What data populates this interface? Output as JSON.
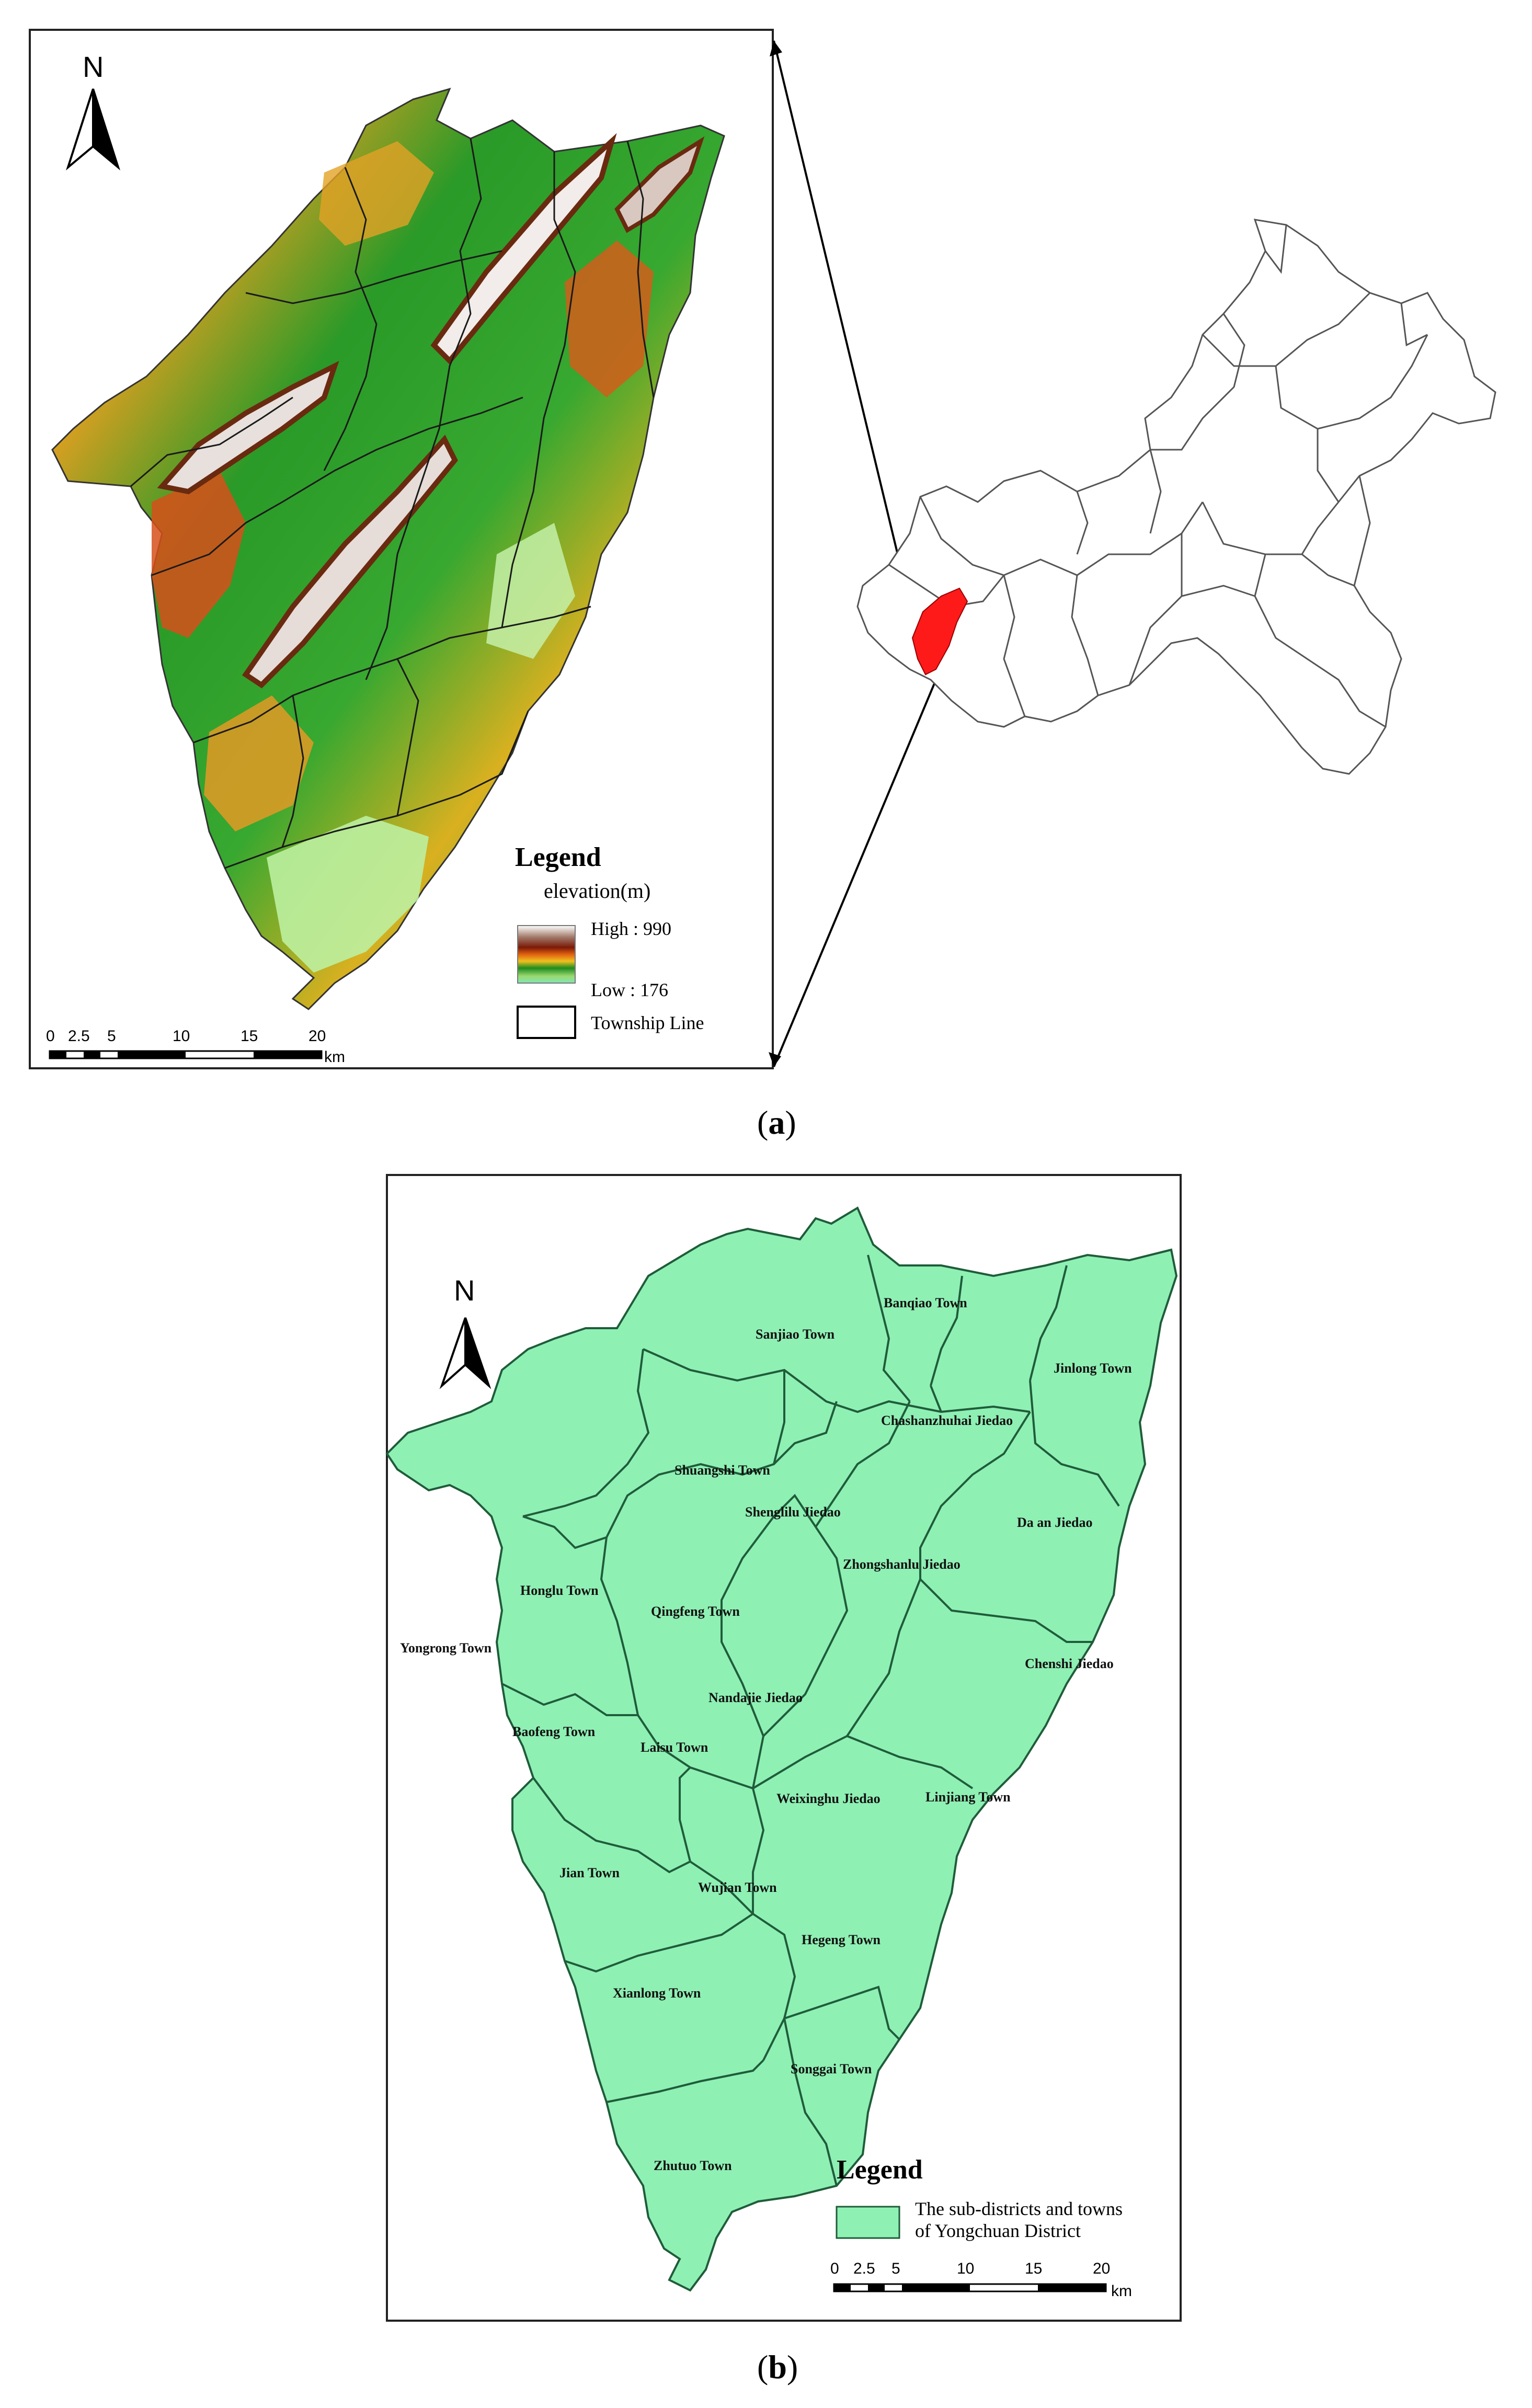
{
  "panel_a": {
    "caption_letter": "a",
    "north_label": "N",
    "legend": {
      "title": "Legend",
      "subtitle": "elevation(m)",
      "high_label": "High : 990",
      "low_label": "Low : 176",
      "boundary_label": "Township Line"
    },
    "scale": {
      "ticks": [
        "0",
        "2.5",
        "5",
        "10",
        "15",
        "20"
      ],
      "unit": "km"
    },
    "colors": {
      "highlight": "#ff1a1a",
      "low": "#7ee8b5",
      "high": "#ffffff"
    }
  },
  "panel_b": {
    "caption_letter": "b",
    "north_label": "N",
    "legend": {
      "title": "Legend",
      "item_line1": "The sub-districts and towns",
      "item_line2": "of Yongchuan District"
    },
    "scale": {
      "ticks": [
        "0",
        "2.5",
        "5",
        "10",
        "15",
        "20"
      ],
      "unit": "km"
    },
    "colors": {
      "fill": "#8ff0b4",
      "stroke": "#1f5c3a"
    },
    "towns": [
      "Banqiao Town",
      "Sanjiao Town",
      "Jinlong Town",
      "Chashanzhuhai Jiedao",
      "Shuangshi Town",
      "Shenglilu Jiedao",
      "Da an Jiedao",
      "Zhongshanlu Jiedao",
      "Honglu Town",
      "Qingfeng Town",
      "Yongrong Town",
      "Chenshi Jiedao",
      "Nandajie Jiedao",
      "Baofeng Town",
      "Laisu Town",
      "Weixinghu Jiedao",
      "Linjiang Town",
      "Jian Town",
      "Wujian Town",
      "Hegeng Town",
      "Xianlong Town",
      "Songgai Town",
      "Zhutuo Town"
    ]
  }
}
